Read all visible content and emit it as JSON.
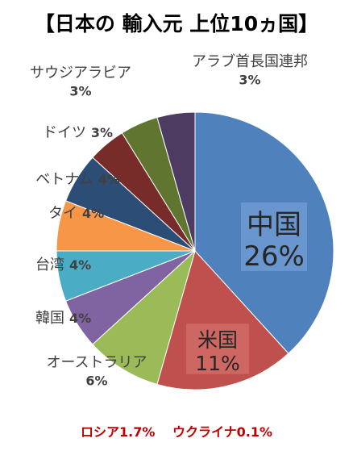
{
  "chart_data": {
    "type": "pie",
    "title": "【日本の 輸入元 上位10ヵ国】",
    "slices": [
      {
        "name": "中国",
        "pct_label": "26%",
        "value": 26,
        "color": "#4f81bd"
      },
      {
        "name": "米国",
        "pct_label": "11%",
        "value": 11,
        "color": "#c0504d"
      },
      {
        "name": "オーストラリア",
        "pct_label": "6%",
        "value": 6,
        "color": "#9bbb59"
      },
      {
        "name": "韓国",
        "pct_label": "4%",
        "value": 4,
        "color": "#8064a2"
      },
      {
        "name": "台湾",
        "pct_label": "4%",
        "value": 4,
        "color": "#4bacc6"
      },
      {
        "name": "タイ",
        "pct_label": "4%",
        "value": 4,
        "color": "#f79646"
      },
      {
        "name": "ベトナム",
        "pct_label": "4%",
        "value": 4,
        "color": "#2c4d75"
      },
      {
        "name": "ドイツ",
        "pct_label": "3%",
        "value": 3,
        "color": "#772c2a"
      },
      {
        "name": "サウジアラビア",
        "pct_label": "3%",
        "value": 3,
        "color": "#5f7530"
      },
      {
        "name": "アラブ首長国連邦",
        "pct_label": "3%",
        "value": 3,
        "color": "#4d3b62"
      }
    ],
    "notes": [
      {
        "text": "ロシア1.7%"
      },
      {
        "text": "ウクライナ0.1%"
      }
    ]
  }
}
